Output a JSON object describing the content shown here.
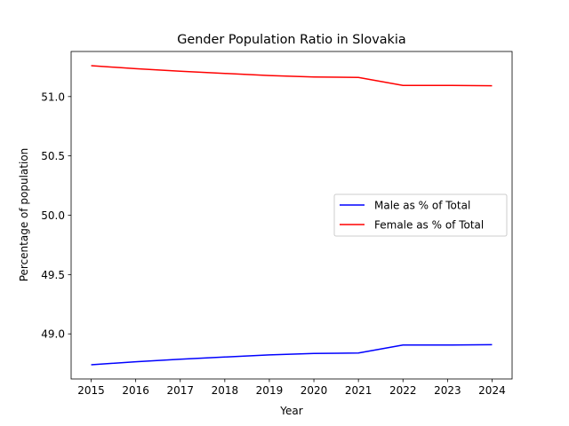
{
  "chart_data": {
    "type": "line",
    "title": "Gender Population Ratio in Slovakia",
    "xlabel": "Year",
    "ylabel": "Percentage of population",
    "x": [
      2015,
      2016,
      2017,
      2018,
      2019,
      2020,
      2021,
      2022,
      2023,
      2024
    ],
    "x_tick_labels": [
      "2015",
      "2016",
      "2017",
      "2018",
      "2019",
      "2020",
      "2021",
      "2022",
      "2023",
      "2024"
    ],
    "y_ticks": [
      49.0,
      49.5,
      50.0,
      50.5,
      51.0
    ],
    "y_tick_labels": [
      "49.0",
      "49.5",
      "50.0",
      "50.5",
      "51.0"
    ],
    "xlim": [
      2014.55,
      2024.45
    ],
    "ylim": [
      48.62,
      51.38
    ],
    "grid": false,
    "legend_position": "center-right",
    "series": [
      {
        "name": "Male as % of Total",
        "color": "#0000ff",
        "values": [
          48.74,
          48.765,
          48.786,
          48.805,
          48.823,
          48.835,
          48.839,
          48.906,
          48.906,
          48.909
        ]
      },
      {
        "name": "Female as % of Total",
        "color": "#ff0000",
        "values": [
          51.26,
          51.235,
          51.214,
          51.195,
          51.177,
          51.165,
          51.161,
          51.094,
          51.094,
          51.091
        ]
      }
    ]
  }
}
